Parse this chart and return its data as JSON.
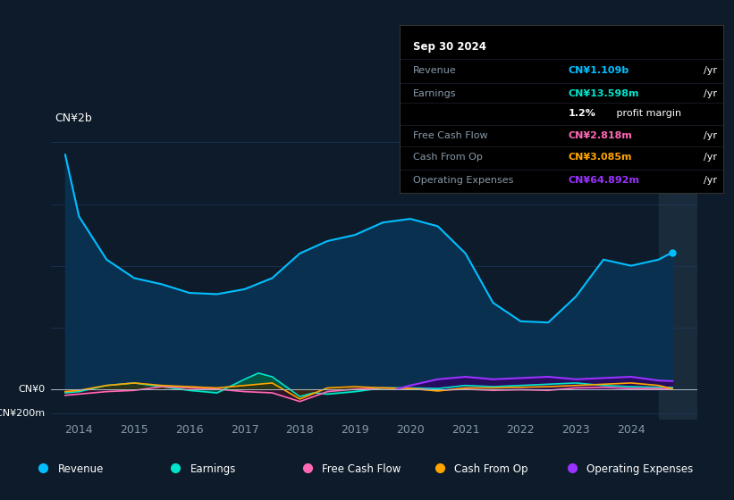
{
  "bg_color": "#0d1b2a",
  "plot_bg_color": "#0d1b2a",
  "grid_color": "#1e3a5f",
  "text_color": "#8899aa",
  "ylabel_text": "CN¥2b",
  "y0_label": "CN¥0",
  "yneg_label": "-CN¥200m",
  "ylim": [
    -250000000,
    2100000000
  ],
  "xlim": [
    2013.5,
    2025.2
  ],
  "xticks": [
    2014,
    2015,
    2016,
    2017,
    2018,
    2019,
    2020,
    2021,
    2022,
    2023,
    2024
  ],
  "revenue_color": "#00bfff",
  "revenue_fill": "#0a3050",
  "earnings_color": "#00e5cc",
  "earnings_fill": "#005544",
  "fcf_color": "#ff69b4",
  "fcf_fill": "#441030",
  "cashfromop_color": "#ffa500",
  "cashfromop_fill": "#442200",
  "opex_color": "#9933ff",
  "opex_fill": "#330066",
  "revenue_x": [
    2013.75,
    2014.0,
    2014.5,
    2015.0,
    2015.5,
    2016.0,
    2016.5,
    2017.0,
    2017.5,
    2018.0,
    2018.5,
    2019.0,
    2019.5,
    2020.0,
    2020.5,
    2021.0,
    2021.5,
    2022.0,
    2022.5,
    2023.0,
    2023.5,
    2024.0,
    2024.5,
    2024.75
  ],
  "revenue_y": [
    1900000000,
    1400000000,
    1050000000,
    900000000,
    850000000,
    780000000,
    770000000,
    810000000,
    900000000,
    1100000000,
    1200000000,
    1250000000,
    1350000000,
    1380000000,
    1320000000,
    1100000000,
    700000000,
    550000000,
    540000000,
    750000000,
    1050000000,
    1000000000,
    1050000000,
    1109000000
  ],
  "earnings_x": [
    2013.75,
    2014.0,
    2014.5,
    2015.0,
    2015.5,
    2016.0,
    2016.5,
    2017.0,
    2017.25,
    2017.5,
    2017.75,
    2018.0,
    2018.25,
    2018.5,
    2019.0,
    2019.5,
    2020.0,
    2020.5,
    2021.0,
    2021.5,
    2022.0,
    2022.5,
    2023.0,
    2023.5,
    2024.0,
    2024.5,
    2024.75
  ],
  "earnings_y": [
    -30000000,
    -20000000,
    30000000,
    50000000,
    20000000,
    -10000000,
    -30000000,
    80000000,
    130000000,
    100000000,
    20000000,
    -60000000,
    -30000000,
    -40000000,
    -20000000,
    10000000,
    10000000,
    5000000,
    30000000,
    20000000,
    30000000,
    40000000,
    50000000,
    30000000,
    20000000,
    15000000,
    13598000
  ],
  "fcf_x": [
    2013.75,
    2014.0,
    2014.5,
    2015.0,
    2015.5,
    2016.0,
    2016.5,
    2017.0,
    2017.5,
    2018.0,
    2018.5,
    2019.0,
    2019.5,
    2020.0,
    2020.5,
    2021.0,
    2021.5,
    2022.0,
    2022.5,
    2023.0,
    2023.5,
    2024.0,
    2024.5,
    2024.75
  ],
  "fcf_y": [
    -50000000,
    -40000000,
    -20000000,
    -10000000,
    20000000,
    10000000,
    0,
    -20000000,
    -30000000,
    -100000000,
    -20000000,
    0,
    10000000,
    5000000,
    -10000000,
    0,
    -10000000,
    -5000000,
    -10000000,
    10000000,
    15000000,
    5000000,
    5000000,
    2818000
  ],
  "cashfromop_x": [
    2013.75,
    2014.0,
    2014.5,
    2015.0,
    2015.5,
    2016.0,
    2016.5,
    2017.0,
    2017.5,
    2018.0,
    2018.5,
    2019.0,
    2019.5,
    2020.0,
    2020.5,
    2021.0,
    2021.5,
    2022.0,
    2022.5,
    2023.0,
    2023.5,
    2024.0,
    2024.5,
    2024.75
  ],
  "cashfromop_y": [
    -20000000,
    -10000000,
    30000000,
    50000000,
    30000000,
    20000000,
    10000000,
    30000000,
    50000000,
    -80000000,
    10000000,
    20000000,
    10000000,
    5000000,
    -15000000,
    10000000,
    10000000,
    15000000,
    20000000,
    30000000,
    40000000,
    50000000,
    30000000,
    3085000
  ],
  "opex_x": [
    2019.75,
    2020.0,
    2020.5,
    2021.0,
    2021.5,
    2022.0,
    2022.5,
    2023.0,
    2023.5,
    2024.0,
    2024.5,
    2024.75
  ],
  "opex_y": [
    0,
    30000000,
    80000000,
    100000000,
    80000000,
    90000000,
    100000000,
    80000000,
    90000000,
    100000000,
    70000000,
    64892000
  ],
  "legend": [
    {
      "label": "Revenue",
      "color": "#00bfff"
    },
    {
      "label": "Earnings",
      "color": "#00e5cc"
    },
    {
      "label": "Free Cash Flow",
      "color": "#ff69b4"
    },
    {
      "label": "Cash From Op",
      "color": "#ffa500"
    },
    {
      "label": "Operating Expenses",
      "color": "#9933ff"
    }
  ],
  "tooltip": {
    "date": "Sep 30 2024",
    "revenue_label": "Revenue",
    "revenue_value": "CN¥1.109b",
    "earnings_label": "Earnings",
    "earnings_value": "CN¥13.598m",
    "profit_margin": "1.2%",
    "fcf_label": "Free Cash Flow",
    "fcf_value": "CN¥2.818m",
    "cashfromop_label": "Cash From Op",
    "cashfromop_value": "CN¥3.085m",
    "opex_label": "Operating Expenses",
    "opex_value": "CN¥64.892m"
  },
  "shaded_right_start": 2024.5
}
